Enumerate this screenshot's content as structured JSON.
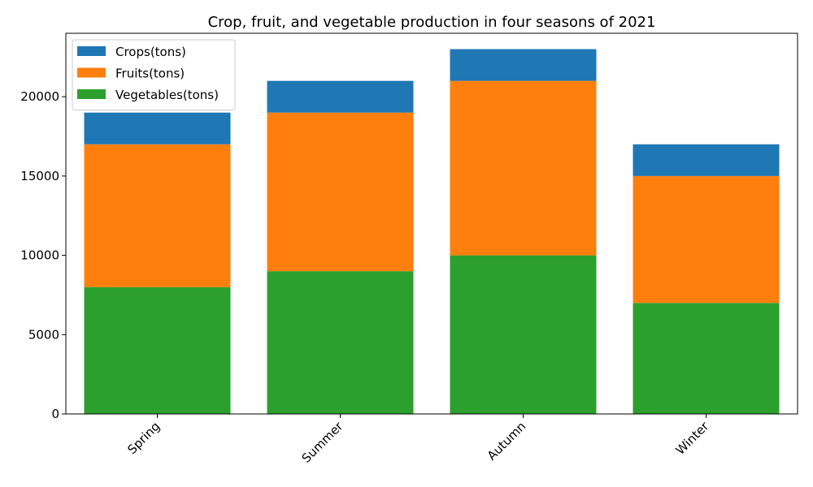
{
  "chart_data": {
    "type": "bar",
    "stacked": true,
    "title": "Crop, fruit, and vegetable production in four seasons of 2021",
    "xlabel": "",
    "ylabel": "",
    "categories": [
      "Spring",
      "Summer",
      "Autumn",
      "Winter"
    ],
    "series": [
      {
        "name": "Crops(tons)",
        "values": [
          2000,
          2000,
          2000,
          2000
        ],
        "color": "#1f77b4"
      },
      {
        "name": "Fruits(tons)",
        "values": [
          9000,
          10000,
          11000,
          8000
        ],
        "color": "#ff7f0e"
      },
      {
        "name": "Vegetables(tons)",
        "values": [
          8000,
          9000,
          10000,
          7000
        ],
        "color": "#2ca02c"
      }
    ],
    "stack_order_bottom_to_top": [
      "Vegetables(tons)",
      "Fruits(tons)",
      "Crops(tons)"
    ],
    "ylim": [
      0,
      24000
    ],
    "yticks": [
      "0",
      "5000",
      "10000",
      "15000",
      "20000"
    ],
    "grid": false,
    "legend_position": "top-left",
    "xtick_rotation_deg": 45
  }
}
